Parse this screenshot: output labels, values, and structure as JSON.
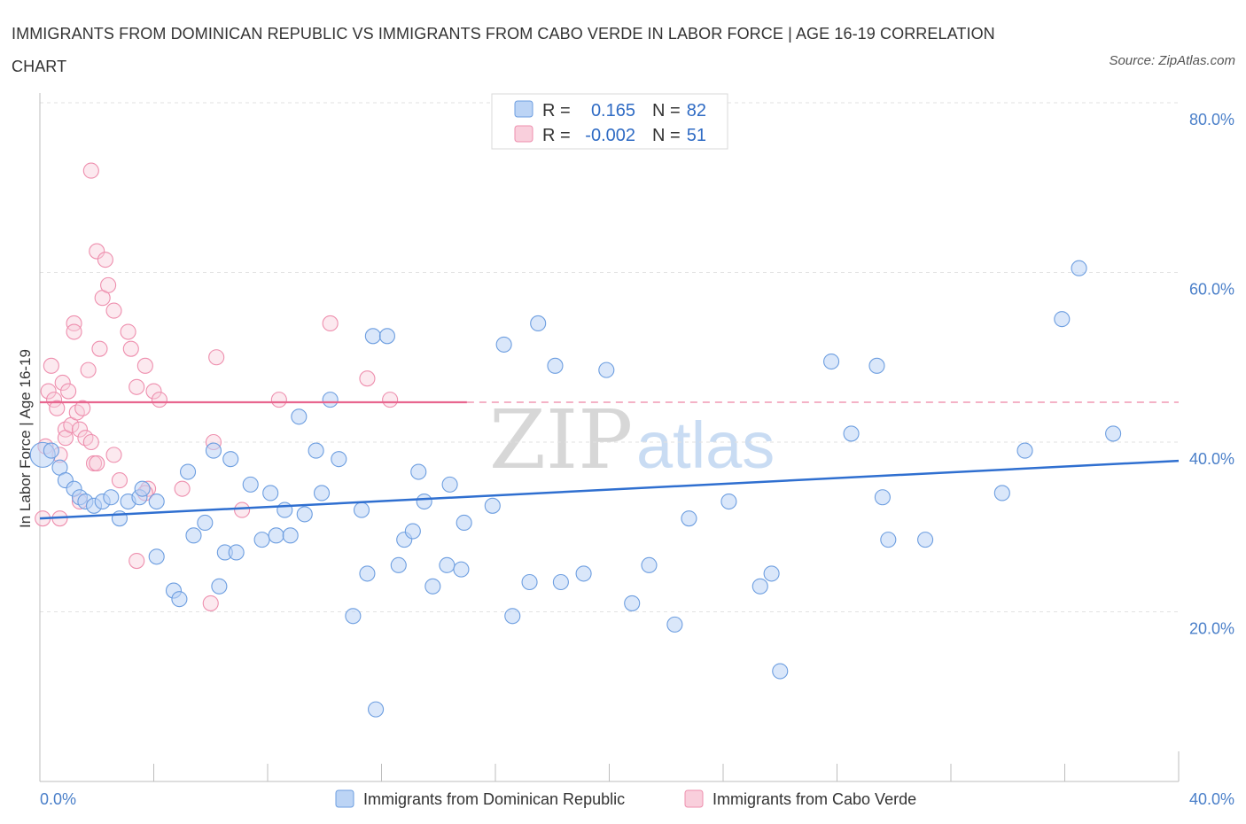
{
  "title": "IMMIGRANTS FROM DOMINICAN REPUBLIC VS IMMIGRANTS FROM CABO VERDE IN LABOR FORCE | AGE 16-19 CORRELATION CHART",
  "source": "Source: ZipAtlas.com",
  "watermark": {
    "zip": "ZIP",
    "atlas": "atlas"
  },
  "colors": {
    "blue": "#6d9ee0",
    "blue_fill": "#bcd4f5",
    "blue_line": "#2f6fd0",
    "pink": "#ee8fae",
    "pink_fill": "#f9cfdc",
    "pink_line": "#e8668f",
    "axis_text": "#4a7fc9"
  },
  "legend": {
    "r_label": "R =",
    "n_label": "N =",
    "series": [
      {
        "r": "0.165",
        "n": "82"
      },
      {
        "r": "-0.002",
        "n": "51"
      }
    ]
  },
  "chart_data": {
    "type": "scatter",
    "xlabel": "",
    "ylabel": "In Labor Force | Age 16-19",
    "xlim": [
      0,
      40
    ],
    "ylim": [
      0,
      80
    ],
    "x_tick_labels": [
      "0.0%",
      "40.0%"
    ],
    "y_tick_labels": [
      "20.0%",
      "40.0%",
      "60.0%",
      "80.0%"
    ],
    "y_ticks": [
      20,
      40,
      60,
      80
    ],
    "grid": true,
    "series": [
      {
        "name": "Immigrants from Dominican Republic",
        "color": "blue",
        "trend": {
          "x": [
            0,
            40
          ],
          "y": [
            31.0,
            37.8
          ]
        },
        "points": [
          [
            0.1,
            38.5
          ],
          [
            0.4,
            39
          ],
          [
            0.7,
            37
          ],
          [
            0.9,
            35.5
          ],
          [
            1.2,
            34.5
          ],
          [
            1.4,
            33.5
          ],
          [
            1.6,
            33
          ],
          [
            1.9,
            32.5
          ],
          [
            2.2,
            33
          ],
          [
            2.5,
            33.5
          ],
          [
            2.8,
            31
          ],
          [
            3.1,
            33
          ],
          [
            3.5,
            33.5
          ],
          [
            3.6,
            34.5
          ],
          [
            4.1,
            33
          ],
          [
            4.1,
            26.5
          ],
          [
            4.7,
            22.5
          ],
          [
            4.9,
            21.5
          ],
          [
            5.2,
            36.5
          ],
          [
            5.4,
            29
          ],
          [
            5.8,
            30.5
          ],
          [
            6.1,
            39
          ],
          [
            6.3,
            23
          ],
          [
            6.5,
            27
          ],
          [
            6.7,
            38
          ],
          [
            6.9,
            27
          ],
          [
            7.4,
            35
          ],
          [
            7.8,
            28.5
          ],
          [
            8.1,
            34
          ],
          [
            8.3,
            29
          ],
          [
            8.6,
            32
          ],
          [
            8.8,
            29
          ],
          [
            9.1,
            43
          ],
          [
            9.3,
            31.5
          ],
          [
            9.7,
            39
          ],
          [
            9.9,
            34
          ],
          [
            10.2,
            45
          ],
          [
            10.5,
            38
          ],
          [
            11.0,
            19.5
          ],
          [
            11.3,
            32
          ],
          [
            11.5,
            24.5
          ],
          [
            11.7,
            52.5
          ],
          [
            11.8,
            8.5
          ],
          [
            12.2,
            52.5
          ],
          [
            12.6,
            25.5
          ],
          [
            12.8,
            28.5
          ],
          [
            13.1,
            29.5
          ],
          [
            13.3,
            36.5
          ],
          [
            13.5,
            33
          ],
          [
            13.8,
            23
          ],
          [
            14.3,
            25.5
          ],
          [
            14.4,
            35
          ],
          [
            14.8,
            25
          ],
          [
            14.9,
            30.5
          ],
          [
            15.9,
            32.5
          ],
          [
            16.3,
            51.5
          ],
          [
            16.6,
            19.5
          ],
          [
            17.2,
            23.5
          ],
          [
            17.5,
            54
          ],
          [
            18.1,
            49
          ],
          [
            18.3,
            23.5
          ],
          [
            19.1,
            24.5
          ],
          [
            19.9,
            48.5
          ],
          [
            20.8,
            21
          ],
          [
            21.4,
            25.5
          ],
          [
            22.3,
            18.5
          ],
          [
            22.8,
            31
          ],
          [
            24.2,
            33
          ],
          [
            25.3,
            23
          ],
          [
            25.7,
            24.5
          ],
          [
            26.0,
            13
          ],
          [
            27.8,
            49.5
          ],
          [
            28.5,
            41
          ],
          [
            29.4,
            49
          ],
          [
            29.6,
            33.5
          ],
          [
            29.8,
            28.5
          ],
          [
            31.1,
            28.5
          ],
          [
            33.8,
            34
          ],
          [
            34.6,
            39
          ],
          [
            35.9,
            54.5
          ],
          [
            36.5,
            60.5
          ],
          [
            37.7,
            41
          ]
        ]
      },
      {
        "name": "Immigrants from Cabo Verde",
        "color": "pink",
        "trend": {
          "x": [
            0,
            15
          ],
          "y": [
            44.7,
            44.7
          ],
          "dashed_to": 40
        },
        "points": [
          [
            0.1,
            31
          ],
          [
            0.2,
            39.5
          ],
          [
            0.3,
            46
          ],
          [
            0.4,
            49
          ],
          [
            0.5,
            45
          ],
          [
            0.6,
            44
          ],
          [
            0.7,
            38.5
          ],
          [
            0.7,
            31
          ],
          [
            0.8,
            47
          ],
          [
            0.9,
            41.5
          ],
          [
            0.9,
            40.5
          ],
          [
            1.0,
            46
          ],
          [
            1.1,
            42
          ],
          [
            1.2,
            54
          ],
          [
            1.2,
            53
          ],
          [
            1.3,
            43.5
          ],
          [
            1.4,
            41.5
          ],
          [
            1.4,
            33
          ],
          [
            1.5,
            44
          ],
          [
            1.6,
            40.5
          ],
          [
            1.7,
            48.5
          ],
          [
            1.8,
            40
          ],
          [
            1.8,
            72
          ],
          [
            1.9,
            37.5
          ],
          [
            2.0,
            62.5
          ],
          [
            2.0,
            37.5
          ],
          [
            2.1,
            51
          ],
          [
            2.2,
            57
          ],
          [
            2.3,
            61.5
          ],
          [
            2.4,
            58.5
          ],
          [
            2.6,
            55.5
          ],
          [
            2.8,
            35.5
          ],
          [
            3.1,
            53
          ],
          [
            3.2,
            51
          ],
          [
            3.4,
            26
          ],
          [
            3.4,
            46.5
          ],
          [
            3.7,
            49
          ],
          [
            3.8,
            34.5
          ],
          [
            4.0,
            46
          ],
          [
            4.2,
            45
          ],
          [
            6.0,
            21
          ],
          [
            6.1,
            40
          ],
          [
            6.2,
            50
          ],
          [
            7.1,
            32
          ],
          [
            8.4,
            45
          ],
          [
            10.2,
            54
          ],
          [
            11.5,
            47.5
          ],
          [
            12.3,
            45
          ],
          [
            3.7,
            34
          ],
          [
            5.0,
            34.5
          ],
          [
            2.6,
            38.5
          ]
        ]
      }
    ]
  },
  "bottom_legend": [
    "Immigrants from Dominican Republic",
    "Immigrants from Cabo Verde"
  ]
}
